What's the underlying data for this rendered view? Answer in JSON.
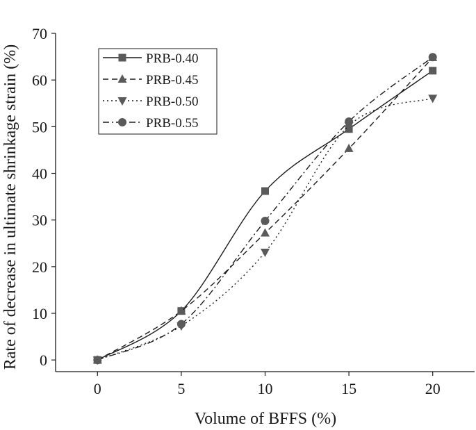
{
  "chart_data": {
    "type": "line",
    "xlabel": "Volume of BFFS (%)",
    "ylabel": "Rate of decrease in ultimate shrinkage strain (%)",
    "x": [
      0,
      5,
      10,
      15,
      20
    ],
    "xlim": [
      -2.5,
      22.5
    ],
    "ylim": [
      -2.5,
      70
    ],
    "xticks": [
      0,
      5,
      10,
      15,
      20
    ],
    "yticks": [
      0,
      10,
      20,
      30,
      40,
      50,
      60,
      70
    ],
    "grid": false,
    "legend_position": "top-left",
    "series": [
      {
        "name": "PRB-0.40",
        "values": [
          0,
          10.5,
          36.2,
          49.5,
          62
        ],
        "marker": "square",
        "dash": "solid"
      },
      {
        "name": "PRB-0.45",
        "values": [
          0,
          10.5,
          27.2,
          45.3,
          64.8
        ],
        "marker": "triangle-up",
        "dash": "dashed"
      },
      {
        "name": "PRB-0.50",
        "values": [
          0,
          7.3,
          23.1,
          50.2,
          56.1
        ],
        "marker": "triangle-down",
        "dash": "dotted"
      },
      {
        "name": "PRB-0.55",
        "values": [
          0,
          7.7,
          29.8,
          51.1,
          64.9
        ],
        "marker": "circle",
        "dash": "dash-dot"
      }
    ]
  }
}
